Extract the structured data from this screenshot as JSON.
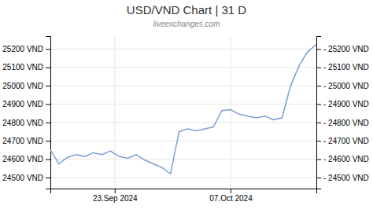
{
  "chart_data": {
    "type": "line",
    "title": "USD/VND Chart | 31 D",
    "subtitle": "liveexchanges.com",
    "x": [
      0,
      1,
      2,
      3,
      4,
      5,
      6,
      7,
      8,
      9,
      10,
      11,
      12,
      13,
      14,
      15,
      16,
      17,
      18,
      19,
      20,
      21,
      22,
      23,
      24,
      25,
      26,
      27,
      28,
      29,
      30,
      31
    ],
    "values": [
      24650,
      24575,
      24610,
      24625,
      24615,
      24635,
      24625,
      24645,
      24615,
      24605,
      24625,
      24595,
      24575,
      24555,
      24520,
      24750,
      24765,
      24755,
      24765,
      24775,
      24865,
      24870,
      24845,
      24835,
      24825,
      24835,
      24815,
      24825,
      25000,
      25110,
      25185,
      25225
    ],
    "color": "#7b9fd4",
    "xlim": [
      0,
      31
    ],
    "xticks": [
      {
        "value": 7.5,
        "label": "23.Sep 2024"
      },
      {
        "value": 21,
        "label": "07.Oct 2024"
      }
    ],
    "ylim": [
      24440,
      25270
    ],
    "yticks": [
      {
        "value": 24500,
        "label": "24500 VND"
      },
      {
        "value": 24600,
        "label": "24600 VND"
      },
      {
        "value": 24700,
        "label": "24700 VND"
      },
      {
        "value": 24800,
        "label": "24800 VND"
      },
      {
        "value": 24900,
        "label": "24900 VND"
      },
      {
        "value": 25000,
        "label": "25000 VND"
      },
      {
        "value": 25100,
        "label": "25100 VND"
      },
      {
        "value": 25200,
        "label": "25200 VND"
      }
    ],
    "y2lim": [
      24440,
      25270
    ],
    "y2ticks": [
      {
        "value": 24500,
        "label": "- 24500 VND"
      },
      {
        "value": 24600,
        "label": "- 24600 VND"
      },
      {
        "value": 24700,
        "label": "- 24700 VND"
      },
      {
        "value": 24800,
        "label": "- 24800 VND"
      },
      {
        "value": 24900,
        "label": "- 24900 VND"
      },
      {
        "value": 25000,
        "label": "- 25000 VND"
      },
      {
        "value": 25100,
        "label": "- 25100 VND"
      },
      {
        "value": 25200,
        "label": "- 25200 VND"
      }
    ],
    "grid": true
  }
}
